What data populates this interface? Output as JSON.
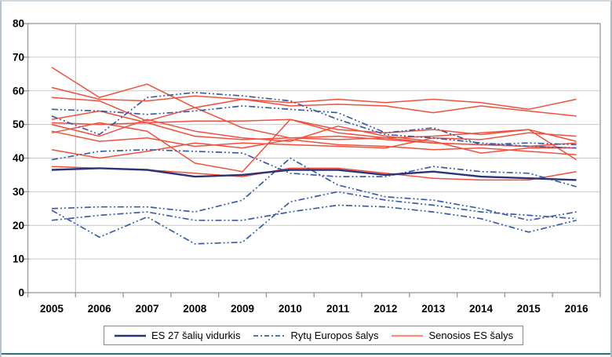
{
  "frame": {
    "border_color": "#b7c4cf",
    "bottom_rule_color": "#2f6d95",
    "plot_border_color": "#9f9f9f",
    "gridline_color": "#c9c9c9",
    "inner_wall_color": "#b8b8b8",
    "background": "#ffffff",
    "text_color": "#000000"
  },
  "chart_data": {
    "type": "line",
    "title": "",
    "xlabel": "",
    "ylabel": "",
    "categories": [
      "2005",
      "2006",
      "2007",
      "2008",
      "2009",
      "2010",
      "2011",
      "2012",
      "2013",
      "2014",
      "2015",
      "2016"
    ],
    "yticks": [
      0,
      10,
      20,
      30,
      40,
      50,
      60,
      70,
      80
    ],
    "ylim": [
      0,
      80
    ],
    "grid": "horizontal",
    "legend_position": "bottom",
    "colors": {
      "es27": "#2c3478",
      "rytu": "#3a5caa",
      "senosios": "#f1503c",
      "senosios_legend_sample": "#f58f7c"
    },
    "legend": [
      {
        "label": "ES 27 šalių vidurkis",
        "group": "es27",
        "style": "solid-thick"
      },
      {
        "label": "Rytų Europos šalys",
        "group": "rytu",
        "style": "dash-dot-dot"
      },
      {
        "label": "Senosios ES šalys",
        "group": "senosios",
        "style": "solid"
      }
    ],
    "series": [
      {
        "id": "senosios-1",
        "group": "senosios",
        "values": [
          67,
          58,
          62,
          55,
          49,
          46,
          45.5,
          46,
          44.5,
          44,
          43.5,
          43
        ]
      },
      {
        "id": "senosios-2",
        "group": "senosios",
        "values": [
          61,
          57.5,
          57,
          58.5,
          57.5,
          56.5,
          57.5,
          56.5,
          57.5,
          56.5,
          54.5,
          57.5
        ]
      },
      {
        "id": "senosios-3",
        "group": "senosios",
        "values": [
          58,
          57,
          51,
          55,
          57.5,
          55.5,
          56,
          55.5,
          53.5,
          55.5,
          54,
          52.5
        ]
      },
      {
        "id": "senosios-4",
        "group": "senosios",
        "values": [
          51.5,
          54,
          50.5,
          51,
          51,
          51.5,
          48.5,
          47.5,
          48.5,
          47,
          48.5,
          45
        ]
      },
      {
        "id": "senosios-5",
        "group": "senosios",
        "values": [
          50.5,
          50,
          50.5,
          46.5,
          45.5,
          46,
          46.5,
          45.5,
          44.5,
          44,
          43.5,
          44.5
        ]
      },
      {
        "id": "senosios-6",
        "group": "senosios",
        "values": [
          50,
          46.5,
          51.5,
          48,
          46,
          45,
          49.5,
          46.5,
          45,
          41.5,
          43,
          43
        ]
      },
      {
        "id": "senosios-7",
        "group": "senosios",
        "values": [
          48,
          45,
          46,
          43.5,
          44.5,
          44,
          43.5,
          43,
          46,
          45.5,
          47.5,
          46.5
        ]
      },
      {
        "id": "senosios-8",
        "group": "senosios",
        "values": [
          47.5,
          50.5,
          48,
          38.5,
          36,
          51.5,
          47.5,
          46,
          46.5,
          47.5,
          48.5,
          39.5
        ]
      },
      {
        "id": "senosios-9",
        "group": "senosios",
        "values": [
          42.5,
          40,
          42,
          44.5,
          43,
          45.5,
          44,
          43.5,
          42.5,
          43,
          42,
          41
        ]
      },
      {
        "id": "senosios-10",
        "group": "senosios",
        "values": [
          37.5,
          37,
          36.5,
          35.5,
          34.5,
          37,
          37,
          35.5,
          34,
          33.5,
          33.5,
          36
        ]
      },
      {
        "id": "rytu-1",
        "group": "rytu",
        "values": [
          52.5,
          47,
          58,
          59.5,
          58.5,
          57,
          51.5,
          47,
          46,
          44.5,
          43.5,
          43
        ]
      },
      {
        "id": "rytu-2",
        "group": "rytu",
        "values": [
          54.5,
          54,
          53,
          54,
          55.5,
          54.5,
          53.5,
          47.5,
          49,
          44,
          44.5,
          44
        ]
      },
      {
        "id": "rytu-3",
        "group": "rytu",
        "values": [
          39.5,
          42,
          42.5,
          42,
          41.5,
          35.5,
          34.5,
          34.5,
          37.5,
          36,
          35.5,
          31.5
        ]
      },
      {
        "id": "rytu-4",
        "group": "rytu",
        "values": [
          25,
          25.5,
          25.5,
          24,
          27.5,
          40,
          32,
          28.5,
          27.5,
          25,
          21.5,
          24
        ]
      },
      {
        "id": "rytu-5",
        "group": "rytu",
        "values": [
          24.5,
          16.5,
          22.5,
          14.5,
          15,
          27,
          30,
          27.5,
          26,
          24,
          23,
          22
        ]
      },
      {
        "id": "rytu-6",
        "group": "rytu",
        "values": [
          21.5,
          23,
          24,
          21.5,
          21.5,
          24,
          26,
          25.5,
          24,
          22,
          18,
          21.5
        ]
      },
      {
        "id": "es27-average",
        "group": "es27",
        "values": [
          36.5,
          37,
          36.5,
          34.5,
          35,
          36.5,
          36.5,
          35,
          36,
          34.5,
          34,
          33.5
        ]
      }
    ]
  }
}
